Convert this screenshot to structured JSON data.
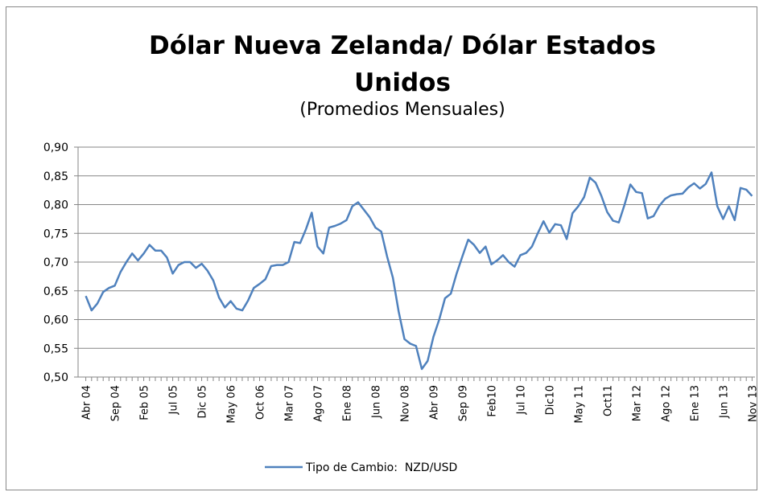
{
  "chart_data": {
    "type": "line",
    "title": "Dólar Nueva Zelanda/ Dólar Estados Unidos",
    "subtitle": "(Promedios Mensuales)",
    "categories": [
      "Abr 04",
      null,
      null,
      null,
      null,
      "Sep 04",
      null,
      null,
      null,
      null,
      "Feb 05",
      null,
      null,
      null,
      null,
      "Jul 05",
      null,
      null,
      null,
      null,
      "Dic 05",
      null,
      null,
      null,
      null,
      "May 06",
      null,
      null,
      null,
      null,
      "Oct 06",
      null,
      null,
      null,
      null,
      "Mar 07",
      null,
      null,
      null,
      null,
      "Ago 07",
      null,
      null,
      null,
      null,
      "Ene 08",
      null,
      null,
      null,
      null,
      "Jun 08",
      null,
      null,
      null,
      null,
      "Nov 08",
      null,
      null,
      null,
      null,
      "Abr 09",
      null,
      null,
      null,
      null,
      "Sep 09",
      null,
      null,
      null,
      null,
      "Feb10",
      null,
      null,
      null,
      null,
      "Jul 10",
      null,
      null,
      null,
      null,
      "Dic10",
      null,
      null,
      null,
      null,
      "May 11",
      null,
      null,
      null,
      null,
      "Oct11",
      null,
      null,
      null,
      null,
      "Mar 12",
      null,
      null,
      null,
      null,
      "Ago 12",
      null,
      null,
      null,
      null,
      "Ene 13",
      null,
      null,
      null,
      null,
      "Jun 13",
      null,
      null,
      null,
      null,
      "Nov 13"
    ],
    "series": [
      {
        "name": "Tipo de Cambio:  NZD/USD",
        "color": "#4f81bd",
        "values": [
          0.641,
          0.616,
          0.628,
          0.648,
          0.655,
          0.659,
          0.683,
          0.7,
          0.715,
          0.703,
          0.715,
          0.73,
          0.72,
          0.72,
          0.708,
          0.68,
          0.695,
          0.7,
          0.7,
          0.69,
          0.697,
          0.685,
          0.668,
          0.638,
          0.621,
          0.632,
          0.619,
          0.616,
          0.633,
          0.655,
          0.662,
          0.67,
          0.693,
          0.695,
          0.695,
          0.7,
          0.735,
          0.733,
          0.757,
          0.786,
          0.727,
          0.715,
          0.76,
          0.763,
          0.767,
          0.773,
          0.797,
          0.804,
          0.791,
          0.778,
          0.76,
          0.753,
          0.71,
          0.673,
          0.614,
          0.566,
          0.558,
          0.554,
          0.514,
          0.528,
          0.57,
          0.6,
          0.637,
          0.645,
          0.68,
          0.71,
          0.739,
          0.73,
          0.716,
          0.727,
          0.696,
          0.703,
          0.712,
          0.7,
          0.692,
          0.712,
          0.716,
          0.727,
          0.75,
          0.771,
          0.751,
          0.766,
          0.764,
          0.74,
          0.785,
          0.797,
          0.813,
          0.847,
          0.838,
          0.815,
          0.787,
          0.772,
          0.769,
          0.8,
          0.835,
          0.822,
          0.82,
          0.776,
          0.78,
          0.798,
          0.81,
          0.816,
          0.818,
          0.819,
          0.83,
          0.837,
          0.828,
          0.836,
          0.856,
          0.797,
          0.775,
          0.797,
          0.773,
          0.829,
          0.826,
          0.815
        ]
      }
    ],
    "ylim": [
      0.5,
      0.9
    ],
    "yticks": [
      {
        "value": 0.5,
        "label": "0,50"
      },
      {
        "value": 0.55,
        "label": "0,55"
      },
      {
        "value": 0.6,
        "label": "0,60"
      },
      {
        "value": 0.65,
        "label": "0,65"
      },
      {
        "value": 0.7,
        "label": "0,70"
      },
      {
        "value": 0.75,
        "label": "0,75"
      },
      {
        "value": 0.8,
        "label": "0,80"
      },
      {
        "value": 0.85,
        "label": "0,85"
      },
      {
        "value": 0.9,
        "label": "0,90"
      }
    ],
    "grid": true,
    "legend": "bottom"
  }
}
